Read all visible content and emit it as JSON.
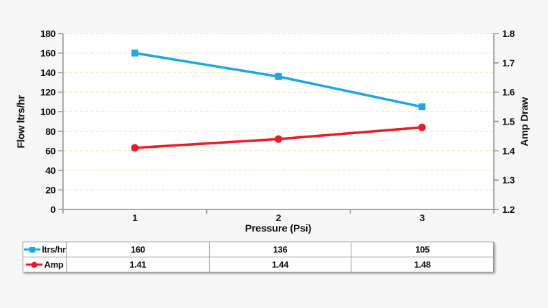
{
  "chart_data": {
    "type": "line",
    "title": "",
    "xlabel": "Pressure (Psi)",
    "x_categories": [
      "1",
      "2",
      "3"
    ],
    "grid": {
      "color": "#f0e9ba",
      "dashed": true,
      "show": true
    },
    "axis_color": "#9b9b9b",
    "text_color": "#111111",
    "left_axis": {
      "label": "Flow ltrs/hr",
      "min": 0,
      "max": 180,
      "ticks": [
        "0",
        "20",
        "40",
        "60",
        "80",
        "100",
        "120",
        "140",
        "160",
        "180"
      ]
    },
    "right_axis": {
      "label": "Amp Draw",
      "min": 1.2,
      "max": 1.8,
      "ticks": [
        "1.2",
        "1.3",
        "1.4",
        "1.5",
        "1.6",
        "1.7",
        "1.8"
      ]
    },
    "series": [
      {
        "name": "ltrs/hr",
        "axis": "left",
        "color": "#1ea8e2",
        "marker": "square",
        "values": [
          160,
          136,
          105
        ]
      },
      {
        "name": "Amp",
        "axis": "right",
        "color": "#ed1c24",
        "marker": "circle",
        "values": [
          1.41,
          1.44,
          1.48
        ]
      }
    ],
    "legend_position": "table-left"
  },
  "table": {
    "rows": [
      {
        "legend": "ltrs/hr",
        "marker": "square",
        "color": "#1ea8e2",
        "values": [
          "160",
          "136",
          "105"
        ]
      },
      {
        "legend": "Amp",
        "marker": "circle",
        "color": "#ed1c24",
        "values": [
          "1.41",
          "1.44",
          "1.48"
        ]
      }
    ]
  }
}
